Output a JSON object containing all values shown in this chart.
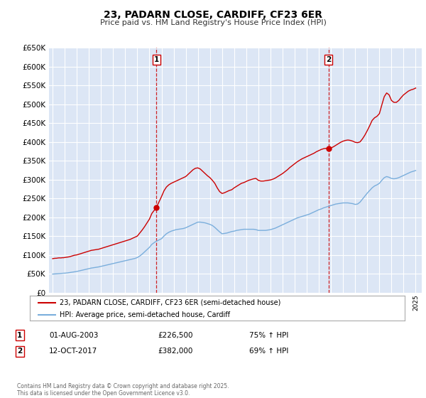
{
  "title": "23, PADARN CLOSE, CARDIFF, CF23 6ER",
  "subtitle": "Price paid vs. HM Land Registry's House Price Index (HPI)",
  "ylim": [
    0,
    650000
  ],
  "yticks": [
    0,
    50000,
    100000,
    150000,
    200000,
    250000,
    300000,
    350000,
    400000,
    450000,
    500000,
    550000,
    600000,
    650000
  ],
  "xlim_start": 1994.7,
  "xlim_end": 2025.5,
  "figure_bg": "#ffffff",
  "plot_bg": "#dce6f5",
  "grid_color": "#ffffff",
  "red_line_color": "#cc0000",
  "blue_line_color": "#7aaedc",
  "marker1_x": 2003.583,
  "marker1_y": 226500,
  "marker2_x": 2017.79,
  "marker2_y": 382000,
  "vline1_x": 2003.583,
  "vline2_x": 2017.79,
  "label1_num": "1",
  "label2_num": "2",
  "legend_red_label": "23, PADARN CLOSE, CARDIFF, CF23 6ER (semi-detached house)",
  "legend_blue_label": "HPI: Average price, semi-detached house, Cardiff",
  "annotation1_date": "01-AUG-2003",
  "annotation1_price": "£226,500",
  "annotation1_hpi": "75% ↑ HPI",
  "annotation2_date": "12-OCT-2017",
  "annotation2_price": "£382,000",
  "annotation2_hpi": "69% ↑ HPI",
  "footnote": "Contains HM Land Registry data © Crown copyright and database right 2025.\nThis data is licensed under the Open Government Licence v3.0.",
  "red_series_x": [
    1995.0,
    1995.1,
    1995.2,
    1995.3,
    1995.4,
    1995.5,
    1995.6,
    1995.7,
    1995.8,
    1995.9,
    1996.0,
    1996.1,
    1996.2,
    1996.4,
    1996.6,
    1996.8,
    1997.0,
    1997.2,
    1997.4,
    1997.6,
    1997.8,
    1998.0,
    1998.2,
    1998.4,
    1998.6,
    1998.8,
    1999.0,
    1999.2,
    1999.4,
    1999.6,
    1999.8,
    2000.0,
    2000.2,
    2000.4,
    2000.6,
    2000.8,
    2001.0,
    2001.2,
    2001.4,
    2001.6,
    2001.8,
    2002.0,
    2002.2,
    2002.4,
    2002.6,
    2002.8,
    2003.0,
    2003.2,
    2003.583,
    2004.0,
    2004.2,
    2004.4,
    2004.6,
    2004.8,
    2005.0,
    2005.2,
    2005.4,
    2005.6,
    2005.8,
    2006.0,
    2006.2,
    2006.4,
    2006.6,
    2006.8,
    2007.0,
    2007.2,
    2007.4,
    2007.6,
    2007.8,
    2008.0,
    2008.2,
    2008.4,
    2008.6,
    2008.8,
    2009.0,
    2009.2,
    2009.4,
    2009.6,
    2009.8,
    2010.0,
    2010.2,
    2010.4,
    2010.6,
    2010.8,
    2011.0,
    2011.2,
    2011.4,
    2011.6,
    2011.8,
    2012.0,
    2012.2,
    2012.4,
    2012.6,
    2012.8,
    2013.0,
    2013.2,
    2013.4,
    2013.6,
    2013.8,
    2014.0,
    2014.2,
    2014.4,
    2014.6,
    2014.8,
    2015.0,
    2015.2,
    2015.4,
    2015.6,
    2015.8,
    2016.0,
    2016.2,
    2016.4,
    2016.6,
    2016.8,
    2017.0,
    2017.2,
    2017.4,
    2017.6,
    2017.79,
    2018.0,
    2018.2,
    2018.4,
    2018.6,
    2018.8,
    2019.0,
    2019.2,
    2019.4,
    2019.6,
    2019.8,
    2020.0,
    2020.2,
    2020.4,
    2020.6,
    2020.8,
    2021.0,
    2021.2,
    2021.4,
    2021.6,
    2021.8,
    2022.0,
    2022.2,
    2022.4,
    2022.6,
    2022.8,
    2023.0,
    2023.2,
    2023.4,
    2023.6,
    2023.8,
    2024.0,
    2024.2,
    2024.4,
    2024.6,
    2024.8,
    2025.0
  ],
  "red_series_y": [
    90000,
    90500,
    91000,
    91000,
    91500,
    92000,
    92000,
    92000,
    92500,
    92500,
    93000,
    93500,
    94000,
    95000,
    97000,
    99000,
    100000,
    102000,
    104000,
    106000,
    108000,
    110000,
    112000,
    113000,
    114000,
    115000,
    117000,
    119000,
    121000,
    123000,
    125000,
    127000,
    129000,
    131000,
    133000,
    135000,
    137000,
    139000,
    141000,
    144000,
    147000,
    150000,
    158000,
    166000,
    175000,
    185000,
    195000,
    210000,
    226500,
    255000,
    270000,
    280000,
    286000,
    290000,
    293000,
    296000,
    299000,
    302000,
    305000,
    308000,
    314000,
    320000,
    326000,
    330000,
    331000,
    328000,
    322000,
    316000,
    310000,
    305000,
    298000,
    290000,
    278000,
    268000,
    263000,
    265000,
    268000,
    271000,
    273000,
    278000,
    282000,
    286000,
    290000,
    292000,
    295000,
    298000,
    300000,
    302000,
    303000,
    298000,
    296000,
    296000,
    297000,
    298000,
    299000,
    301000,
    304000,
    308000,
    312000,
    316000,
    321000,
    326000,
    332000,
    337000,
    342000,
    347000,
    351000,
    355000,
    358000,
    361000,
    364000,
    367000,
    370000,
    374000,
    377000,
    380000,
    382000,
    383000,
    382000,
    384000,
    387000,
    391000,
    395000,
    399000,
    402000,
    404000,
    405000,
    404000,
    402000,
    399000,
    398000,
    400000,
    408000,
    418000,
    430000,
    443000,
    457000,
    464000,
    468000,
    475000,
    498000,
    520000,
    530000,
    525000,
    510000,
    505000,
    505000,
    510000,
    518000,
    525000,
    530000,
    535000,
    538000,
    540000,
    543000
  ],
  "blue_series_x": [
    1995.0,
    1995.1,
    1995.2,
    1995.3,
    1995.4,
    1995.5,
    1995.6,
    1995.7,
    1995.8,
    1995.9,
    1996.0,
    1996.2,
    1996.4,
    1996.6,
    1996.8,
    1997.0,
    1997.2,
    1997.4,
    1997.6,
    1997.8,
    1998.0,
    1998.2,
    1998.4,
    1998.6,
    1998.8,
    1999.0,
    1999.2,
    1999.4,
    1999.6,
    1999.8,
    2000.0,
    2000.2,
    2000.4,
    2000.6,
    2000.8,
    2001.0,
    2001.2,
    2001.4,
    2001.6,
    2001.8,
    2002.0,
    2002.2,
    2002.4,
    2002.6,
    2002.8,
    2003.0,
    2003.2,
    2003.5,
    2004.0,
    2004.2,
    2004.4,
    2004.6,
    2004.8,
    2005.0,
    2005.2,
    2005.4,
    2005.6,
    2005.8,
    2006.0,
    2006.2,
    2006.4,
    2006.6,
    2006.8,
    2007.0,
    2007.2,
    2007.4,
    2007.6,
    2007.8,
    2008.0,
    2008.2,
    2008.4,
    2008.6,
    2008.8,
    2009.0,
    2009.2,
    2009.4,
    2009.6,
    2009.8,
    2010.0,
    2010.2,
    2010.4,
    2010.6,
    2010.8,
    2011.0,
    2011.2,
    2011.4,
    2011.6,
    2011.8,
    2012.0,
    2012.2,
    2012.4,
    2012.6,
    2012.8,
    2013.0,
    2013.2,
    2013.4,
    2013.6,
    2013.8,
    2014.0,
    2014.2,
    2014.4,
    2014.6,
    2014.8,
    2015.0,
    2015.2,
    2015.4,
    2015.6,
    2015.8,
    2016.0,
    2016.2,
    2016.4,
    2016.6,
    2016.8,
    2017.0,
    2017.2,
    2017.4,
    2017.6,
    2017.8,
    2018.0,
    2018.2,
    2018.4,
    2018.6,
    2018.8,
    2019.0,
    2019.2,
    2019.4,
    2019.6,
    2019.8,
    2020.0,
    2020.2,
    2020.4,
    2020.6,
    2020.8,
    2021.0,
    2021.2,
    2021.4,
    2021.6,
    2021.8,
    2022.0,
    2022.2,
    2022.4,
    2022.6,
    2022.8,
    2023.0,
    2023.2,
    2023.4,
    2023.6,
    2023.8,
    2024.0,
    2024.2,
    2024.4,
    2024.6,
    2024.8,
    2025.0
  ],
  "blue_series_y": [
    49000,
    49200,
    49500,
    49700,
    50000,
    50200,
    50500,
    50700,
    51000,
    51200,
    51500,
    52000,
    53000,
    54000,
    55000,
    56000,
    57500,
    59000,
    60500,
    62000,
    63500,
    65000,
    66000,
    67000,
    68000,
    69500,
    71000,
    72500,
    74000,
    75500,
    77000,
    78500,
    80000,
    81500,
    83000,
    84500,
    86000,
    87500,
    89000,
    90500,
    93000,
    97000,
    102000,
    108000,
    114000,
    120000,
    128000,
    135000,
    143000,
    150000,
    156000,
    160000,
    163000,
    165000,
    167000,
    168000,
    169000,
    170000,
    172000,
    175000,
    178000,
    181000,
    184000,
    187000,
    187000,
    186000,
    185000,
    183000,
    181000,
    178000,
    173000,
    167000,
    161000,
    156000,
    157000,
    158000,
    160000,
    162000,
    163000,
    165000,
    166000,
    167000,
    168000,
    168000,
    168000,
    168000,
    168000,
    167000,
    165000,
    165000,
    165000,
    165000,
    166000,
    167000,
    169000,
    171000,
    174000,
    177000,
    180000,
    183000,
    186000,
    189000,
    192000,
    195000,
    198000,
    200000,
    202000,
    204000,
    206000,
    208000,
    211000,
    214000,
    217000,
    220000,
    222000,
    225000,
    227000,
    229000,
    231000,
    233000,
    235000,
    236000,
    237000,
    238000,
    238000,
    238000,
    237000,
    236000,
    234000,
    235000,
    240000,
    248000,
    256000,
    264000,
    271000,
    278000,
    283000,
    286000,
    290000,
    298000,
    305000,
    308000,
    306000,
    303000,
    302000,
    303000,
    305000,
    308000,
    311000,
    314000,
    317000,
    320000,
    322000,
    324000
  ]
}
